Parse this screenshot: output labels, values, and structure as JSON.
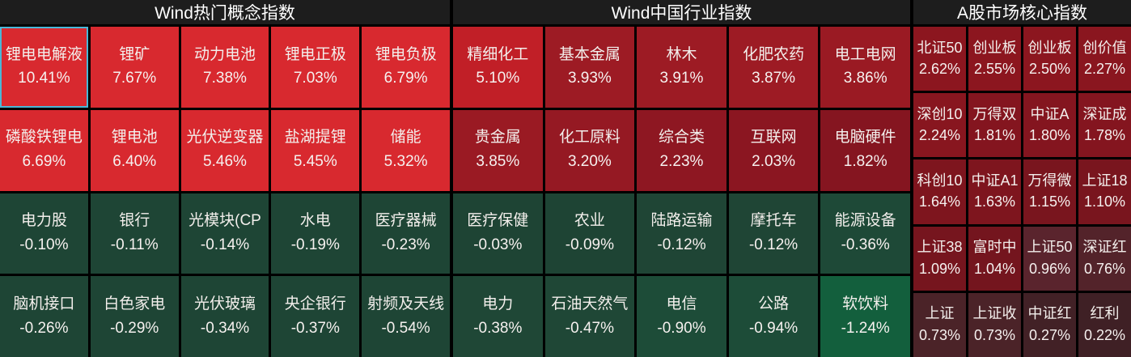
{
  "colors": {
    "background": "#000000",
    "header_bg": "#1d1d1d",
    "header_text": "#ffffff",
    "tile_text": "#f3efec",
    "selected_border": "#4ab7d8",
    "gain_bright_red": "#d8292f",
    "loss_dark_green": "#1e4535"
  },
  "panels": [
    {
      "title": "Wind热门概念指数",
      "columns": 5,
      "cells": [
        {
          "name": "锂电电解液",
          "value": "10.41%",
          "bg": "#d8292f",
          "selected": true
        },
        {
          "name": "锂矿",
          "value": "7.67%",
          "bg": "#d8292f"
        },
        {
          "name": "动力电池",
          "value": "7.38%",
          "bg": "#d8292f"
        },
        {
          "name": "锂电正极",
          "value": "7.03%",
          "bg": "#d8292f"
        },
        {
          "name": "锂电负极",
          "value": "6.79%",
          "bg": "#d8292f"
        },
        {
          "name": "磷酸铁锂电",
          "value": "6.69%",
          "bg": "#d8292f"
        },
        {
          "name": "锂电池",
          "value": "6.40%",
          "bg": "#d8292f"
        },
        {
          "name": "光伏逆变器",
          "value": "5.46%",
          "bg": "#d8292f"
        },
        {
          "name": "盐湖提锂",
          "value": "5.45%",
          "bg": "#d8292f"
        },
        {
          "name": "储能",
          "value": "5.32%",
          "bg": "#d8292f"
        },
        {
          "name": "电力股",
          "value": "-0.10%",
          "bg": "#1e4535"
        },
        {
          "name": "银行",
          "value": "-0.11%",
          "bg": "#1e4535"
        },
        {
          "name": "光模块(CP",
          "value": "-0.14%",
          "bg": "#1e4535"
        },
        {
          "name": "水电",
          "value": "-0.19%",
          "bg": "#1e4535"
        },
        {
          "name": "医疗器械",
          "value": "-0.23%",
          "bg": "#1e4535"
        },
        {
          "name": "脑机接口",
          "value": "-0.26%",
          "bg": "#1e4535"
        },
        {
          "name": "白色家电",
          "value": "-0.29%",
          "bg": "#1e4535"
        },
        {
          "name": "光伏玻璃",
          "value": "-0.34%",
          "bg": "#1e4535"
        },
        {
          "name": "央企银行",
          "value": "-0.37%",
          "bg": "#1e4535"
        },
        {
          "name": "射频及天线",
          "value": "-0.54%",
          "bg": "#1e4535"
        }
      ]
    },
    {
      "title": "Wind中国行业指数",
      "columns": 5,
      "cells": [
        {
          "name": "精细化工",
          "value": "5.10%",
          "bg": "#c11f27"
        },
        {
          "name": "基本金属",
          "value": "3.93%",
          "bg": "#9d1b24"
        },
        {
          "name": "林木",
          "value": "3.91%",
          "bg": "#9d1b24"
        },
        {
          "name": "化肥农药",
          "value": "3.87%",
          "bg": "#9d1b24"
        },
        {
          "name": "电工电网",
          "value": "3.86%",
          "bg": "#9a1a23"
        },
        {
          "name": "贵金属",
          "value": "3.85%",
          "bg": "#9a1a23"
        },
        {
          "name": "化工原料",
          "value": "3.20%",
          "bg": "#951923"
        },
        {
          "name": "综合类",
          "value": "2.23%",
          "bg": "#8e1722"
        },
        {
          "name": "互联网",
          "value": "2.03%",
          "bg": "#8b1621"
        },
        {
          "name": "电脑硬件",
          "value": "1.82%",
          "bg": "#851520"
        },
        {
          "name": "医疗保健",
          "value": "-0.03%",
          "bg": "#1e4434"
        },
        {
          "name": "农业",
          "value": "-0.09%",
          "bg": "#1e4434"
        },
        {
          "name": "陆路运输",
          "value": "-0.12%",
          "bg": "#1f4535"
        },
        {
          "name": "摩托车",
          "value": "-0.12%",
          "bg": "#1f4535"
        },
        {
          "name": "能源设备",
          "value": "-0.36%",
          "bg": "#1e4937"
        },
        {
          "name": "电力",
          "value": "-0.38%",
          "bg": "#1f4736"
        },
        {
          "name": "石油天然气",
          "value": "-0.47%",
          "bg": "#1f4736"
        },
        {
          "name": "电信",
          "value": "-0.90%",
          "bg": "#1d4c38"
        },
        {
          "name": "公路",
          "value": "-0.94%",
          "bg": "#1d4c38"
        },
        {
          "name": "软饮料",
          "value": "-1.24%",
          "bg": "#135f3d"
        }
      ]
    },
    {
      "title": "A股市场核心指数",
      "columns": 4,
      "cells": [
        {
          "name": "北证50",
          "value": "2.62%",
          "bg": "#8c161f"
        },
        {
          "name": "创业板",
          "value": "2.55%",
          "bg": "#8c161f"
        },
        {
          "name": "创业板",
          "value": "2.50%",
          "bg": "#8c161f"
        },
        {
          "name": "创价值",
          "value": "2.27%",
          "bg": "#8a161f"
        },
        {
          "name": "深创10",
          "value": "2.24%",
          "bg": "#88161f"
        },
        {
          "name": "万得双",
          "value": "1.81%",
          "bg": "#84151f"
        },
        {
          "name": "中证A",
          "value": "1.80%",
          "bg": "#84151f"
        },
        {
          "name": "深证成",
          "value": "1.78%",
          "bg": "#84151f"
        },
        {
          "name": "科创10",
          "value": "1.64%",
          "bg": "#7e151e"
        },
        {
          "name": "中证A1",
          "value": "1.63%",
          "bg": "#7e151e"
        },
        {
          "name": "万得微",
          "value": "1.15%",
          "bg": "#79151e"
        },
        {
          "name": "上证18",
          "value": "1.10%",
          "bg": "#79151e"
        },
        {
          "name": "上证38",
          "value": "1.09%",
          "bg": "#76151e"
        },
        {
          "name": "富时中",
          "value": "1.04%",
          "bg": "#74151e"
        },
        {
          "name": "上证50",
          "value": "0.96%",
          "bg": "#5a242d"
        },
        {
          "name": "深证红",
          "value": "0.76%",
          "bg": "#53232a"
        },
        {
          "name": "上证",
          "value": "0.73%",
          "bg": "#4b2328"
        },
        {
          "name": "上证收",
          "value": "0.73%",
          "bg": "#4b2328"
        },
        {
          "name": "中证红",
          "value": "0.27%",
          "bg": "#422126"
        },
        {
          "name": "红利",
          "value": "0.22%",
          "bg": "#3f2025"
        }
      ]
    }
  ]
}
